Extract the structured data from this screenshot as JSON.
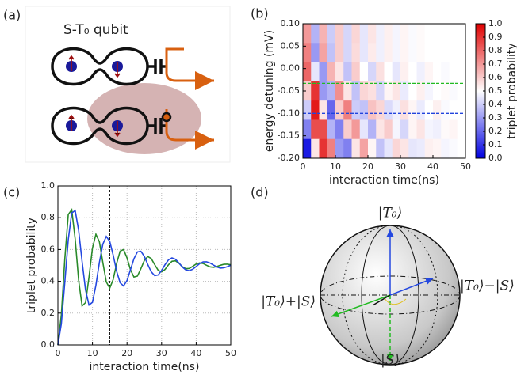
{
  "panel_labels": [
    "(a)",
    "(b)",
    "(c)",
    "(d)"
  ],
  "diagram_a": {
    "title": "S-T₀ qubit"
  },
  "bloch": {
    "top": "|T₀⟩",
    "bottom": "|S⟩",
    "left": "|T₀⟩+|S⟩",
    "right": "|T₀⟩−|S⟩"
  },
  "chart_data": [
    {
      "type": "heatmap",
      "xlabel": "interaction time(ns)",
      "ylabel": "energy detuning (mV)",
      "colorbar_label": "triplet probability",
      "colormap": "bwr",
      "xlim": [
        0,
        50
      ],
      "ylim": [
        -0.2,
        0.1
      ],
      "xticks": [
        0,
        10,
        20,
        30,
        40,
        50
      ],
      "yticks": [
        {
          "value": -0.2,
          "label": "-0.20"
        },
        {
          "value": -0.15,
          "label": "-0.15"
        },
        {
          "value": -0.1,
          "label": "-0.10"
        },
        {
          "value": -0.05,
          "label": "-0.05"
        },
        {
          "value": 0,
          "label": "0.00"
        },
        {
          "value": 0.05,
          "label": "0.05"
        },
        {
          "value": 0.1,
          "label": "0.10"
        }
      ],
      "clim": [
        0,
        1
      ],
      "cticks": [
        {
          "value": 0,
          "label": "0.0"
        },
        0.1,
        0.2,
        0.3,
        0.4,
        0.5,
        0.6,
        0.7,
        0.8,
        0.9,
        {
          "value": 1,
          "label": "1.0"
        }
      ],
      "z": [
        [
          0.7,
          0.35,
          0.65,
          0.4,
          0.6,
          0.42,
          0.58,
          0.45,
          0.55,
          0.47,
          0.53,
          0.48,
          0.52,
          0.49,
          0.51,
          0.5,
          0.5,
          0.5,
          0.5,
          0.5
        ],
        [
          0.75,
          0.3,
          0.68,
          0.38,
          0.6,
          0.42,
          0.57,
          0.45,
          0.54,
          0.47,
          0.53,
          0.48,
          0.52,
          0.49,
          0.51,
          0.5,
          0.5,
          0.5,
          0.5,
          0.5
        ],
        [
          0.8,
          0.45,
          0.3,
          0.65,
          0.55,
          0.38,
          0.6,
          0.5,
          0.42,
          0.56,
          0.5,
          0.45,
          0.53,
          0.5,
          0.47,
          0.52,
          0.5,
          0.49,
          0.5,
          0.5
        ],
        [
          0.6,
          0.9,
          0.3,
          0.35,
          0.72,
          0.55,
          0.38,
          0.58,
          0.56,
          0.42,
          0.52,
          0.55,
          0.46,
          0.5,
          0.53,
          0.48,
          0.5,
          0.51,
          0.49,
          0.5
        ],
        [
          0.4,
          0.95,
          0.55,
          0.2,
          0.6,
          0.75,
          0.4,
          0.38,
          0.62,
          0.58,
          0.43,
          0.47,
          0.56,
          0.52,
          0.46,
          0.5,
          0.53,
          0.49,
          0.5,
          0.5
        ],
        [
          0.25,
          0.85,
          0.85,
          0.35,
          0.25,
          0.6,
          0.7,
          0.45,
          0.35,
          0.55,
          0.6,
          0.48,
          0.42,
          0.52,
          0.55,
          0.48,
          0.47,
          0.51,
          0.52,
          0.5
        ],
        [
          0.05,
          0.55,
          0.9,
          0.75,
          0.3,
          0.25,
          0.55,
          0.68,
          0.52,
          0.38,
          0.45,
          0.58,
          0.55,
          0.45,
          0.46,
          0.53,
          0.52,
          0.48,
          0.49,
          0.5
        ]
      ],
      "hlines": [
        {
          "value": -0.033,
          "color": "#22bb22"
        },
        {
          "value": -0.1,
          "color": "#2244dd"
        }
      ]
    },
    {
      "type": "line",
      "xlabel": "interaction time(ns)",
      "ylabel": "triplet probability",
      "grid": true,
      "xlim": [
        0,
        50
      ],
      "ylim": [
        0,
        1
      ],
      "xticks": [
        0,
        10,
        20,
        30,
        40,
        50
      ],
      "yticks": [
        {
          "value": 0,
          "label": "0.0"
        },
        0.2,
        0.4,
        0.6,
        0.8,
        {
          "value": 1,
          "label": "1.0"
        }
      ],
      "vline": 15,
      "x": [
        0,
        1,
        2,
        3,
        4,
        5,
        6,
        7,
        8,
        9,
        10,
        11,
        12,
        13,
        14,
        15,
        16,
        17,
        18,
        19,
        20,
        21,
        22,
        23,
        24,
        25,
        26,
        27,
        28,
        29,
        30,
        31,
        32,
        33,
        34,
        35,
        36,
        37,
        38,
        39,
        40,
        41,
        42,
        43,
        44,
        45,
        46,
        47,
        48,
        49,
        50
      ],
      "series": [
        {
          "color": "#2a8a2a",
          "values": [
            0,
            0.19,
            0.54,
            0.82,
            0.85,
            0.665,
            0.406,
            0.245,
            0.266,
            0.427,
            0.609,
            0.696,
            0.649,
            0.518,
            0.396,
            0.357,
            0.412,
            0.513,
            0.59,
            0.6,
            0.547,
            0.473,
            0.427,
            0.433,
            0.479,
            0.531,
            0.556,
            0.543,
            0.505,
            0.47,
            0.459,
            0.475,
            0.504,
            0.526,
            0.529,
            0.514,
            0.492,
            0.479,
            0.481,
            0.494,
            0.509,
            0.516,
            0.512,
            0.501,
            0.491,
            0.488,
            0.493,
            0.501,
            0.507,
            0.508,
            0.504
          ]
        },
        {
          "color": "#2448e0",
          "values": [
            0,
            0.133,
            0.394,
            0.662,
            0.83,
            0.845,
            0.72,
            0.525,
            0.345,
            0.251,
            0.268,
            0.376,
            0.518,
            0.634,
            0.682,
            0.651,
            0.564,
            0.463,
            0.391,
            0.371,
            0.405,
            0.473,
            0.542,
            0.585,
            0.589,
            0.557,
            0.506,
            0.46,
            0.436,
            0.44,
            0.468,
            0.505,
            0.535,
            0.547,
            0.539,
            0.516,
            0.49,
            0.472,
            0.467,
            0.476,
            0.493,
            0.511,
            0.522,
            0.523,
            0.515,
            0.502,
            0.49,
            0.483,
            0.485,
            0.492,
            0.501
          ]
        }
      ]
    }
  ]
}
